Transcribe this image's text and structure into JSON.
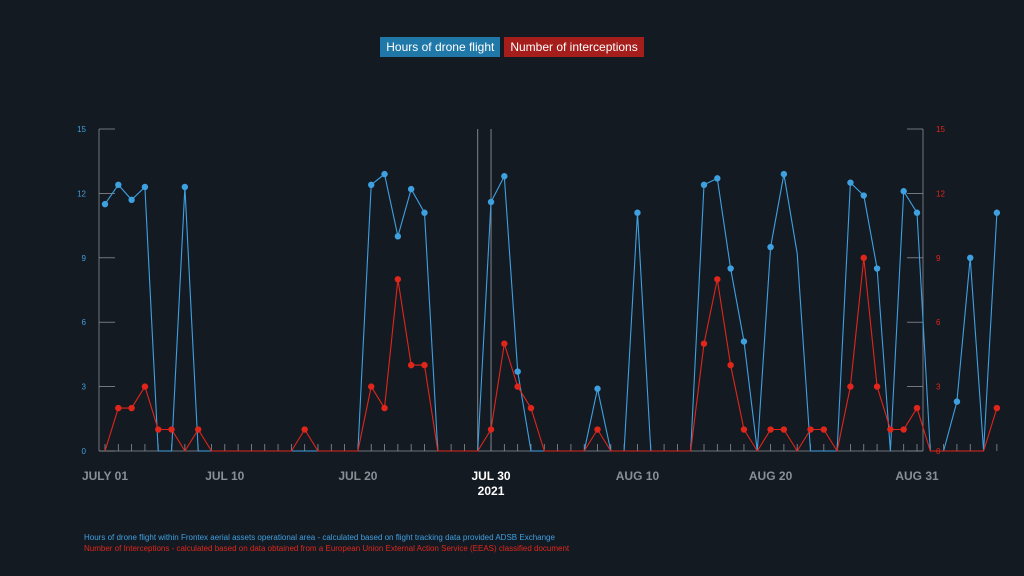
{
  "colors": {
    "flight": "#3fa0e0",
    "interceptions": "#e0261b",
    "legend_flight_bg": "#1f78a8",
    "legend_intercept_bg": "#a51e1c",
    "axis": "#8a8f96",
    "background": "#141a22"
  },
  "legend": {
    "flight": "Hours of drone flight",
    "interceptions": "Number of interceptions"
  },
  "footnotes": {
    "flight": "Hours of drone flight within Frontex aerial assets operational area - calculated based on flight tracking data provided ADSB Exchange",
    "interceptions": "Number of Interceptions - calculated based on data obtained from a European Union External Action Service (EEAS) classified document"
  },
  "chart_data": {
    "type": "line",
    "x_start": "2021-07-01",
    "x_end": "2021-08-31",
    "x_ticks": [
      {
        "date": "2021-07-01",
        "label": "JULY 01"
      },
      {
        "date": "2021-07-10",
        "label": "JUL 10"
      },
      {
        "date": "2021-07-20",
        "label": "JUL 20"
      },
      {
        "date": "2021-07-30",
        "label": "JUL 30",
        "sublabel": "2021",
        "highlight": true
      },
      {
        "date": "2021-08-10",
        "label": "AUG 10"
      },
      {
        "date": "2021-08-20",
        "label": "AUG 20"
      },
      {
        "date": "2021-08-31",
        "label": "AUG 31"
      }
    ],
    "ylim": [
      0,
      15
    ],
    "y_ticks": [
      0,
      3,
      6,
      9,
      12,
      15
    ],
    "marker_dates": [
      "2021-07-29",
      "2021-07-30"
    ],
    "series": [
      {
        "name": "Hours of drone flight",
        "axis": "left",
        "values": [
          11.5,
          12.4,
          11.7,
          12.3,
          0,
          0,
          12.3,
          0,
          0,
          0,
          0,
          0,
          0,
          0,
          0,
          0,
          0,
          0,
          0,
          0,
          12.4,
          12.9,
          10.0,
          12.2,
          11.1,
          0,
          0,
          0,
          0,
          11.6,
          12.8,
          3.7,
          0,
          0,
          0,
          0,
          0,
          2.9,
          0,
          0,
          11.1,
          0,
          0,
          0,
          0,
          12.4,
          12.7,
          8.5,
          5.1,
          0,
          9.5,
          12.9,
          9.2,
          0,
          0,
          0,
          12.5,
          11.9,
          8.5,
          0,
          12.1,
          11.1,
          0,
          0,
          2.3,
          9.0,
          0,
          11.1
        ],
        "markers": [
          0,
          1,
          2,
          3,
          6,
          20,
          21,
          22,
          23,
          24,
          29,
          30,
          31,
          37,
          40,
          45,
          46,
          47,
          48,
          50,
          51,
          56,
          57,
          58,
          60,
          61,
          64,
          65,
          67
        ]
      },
      {
        "name": "Number of interceptions",
        "axis": "right",
        "values": [
          0,
          2,
          2,
          3,
          1,
          1,
          0,
          1,
          0,
          0,
          0,
          0,
          0,
          0,
          0,
          1,
          0,
          0,
          0,
          0,
          3,
          2,
          8,
          4,
          4,
          0,
          0,
          0,
          0,
          1,
          5,
          3,
          2,
          0,
          0,
          0,
          0,
          1,
          0,
          0,
          0,
          0,
          0,
          0,
          0,
          5,
          8,
          4,
          1,
          0,
          1,
          1,
          0,
          1,
          1,
          0,
          3,
          9,
          3,
          1,
          1,
          2,
          0,
          0,
          0,
          0,
          0,
          2
        ],
        "markers": [
          1,
          2,
          3,
          4,
          5,
          7,
          15,
          20,
          21,
          22,
          23,
          24,
          29,
          30,
          31,
          32,
          37,
          45,
          46,
          47,
          48,
          50,
          51,
          53,
          54,
          56,
          57,
          58,
          59,
          60,
          61,
          67
        ]
      }
    ]
  }
}
